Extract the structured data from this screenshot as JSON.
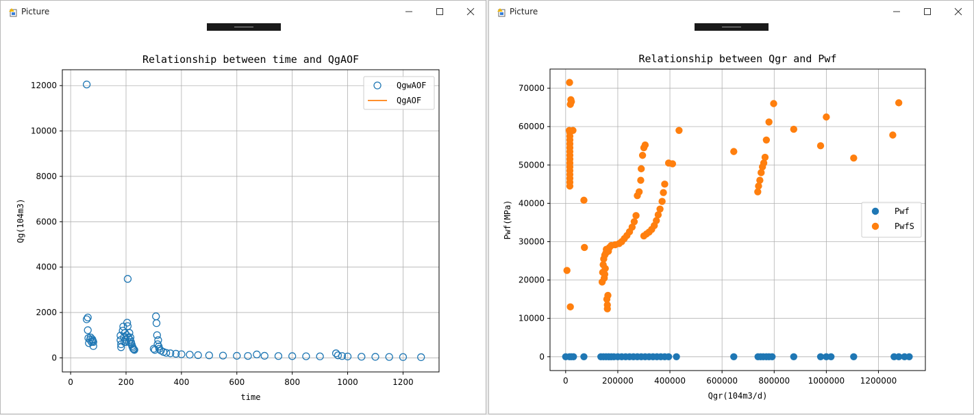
{
  "windows": [
    {
      "title": "Picture",
      "icons": [
        "app-icon",
        "minimize-icon",
        "maximize-icon",
        "close-icon"
      ]
    },
    {
      "title": "Picture",
      "icons": [
        "app-icon",
        "minimize-icon",
        "maximize-icon",
        "close-icon"
      ]
    }
  ],
  "colors": {
    "series1": "#1f77b4",
    "series2": "#ff7f0e",
    "grid": "#b0b0b0"
  },
  "chart_data": [
    {
      "type": "scatter",
      "title": "Relationship between time and QgAOF",
      "xlabel": "time",
      "ylabel": "Qg(104m3)",
      "xlim": [
        -30,
        1330
      ],
      "ylim": [
        -620,
        12700
      ],
      "xticks": [
        0,
        200,
        400,
        600,
        800,
        1000,
        1200
      ],
      "yticks": [
        0,
        2000,
        4000,
        6000,
        8000,
        10000,
        12000
      ],
      "xtick_labels": [
        "0",
        "200",
        "400",
        "600",
        "800",
        "1000",
        "1200"
      ],
      "ytick_labels": [
        "0",
        "2000",
        "4000",
        "6000",
        "8000",
        "10000",
        "12000"
      ],
      "grid": true,
      "legend": "upper right",
      "series": [
        {
          "name": "QgwAOF",
          "marker": "open-circle",
          "color": "#1f77b4",
          "points": [
            [
              58,
              12050
            ],
            [
              58,
              1700
            ],
            [
              62,
              1780
            ],
            [
              62,
              1220
            ],
            [
              64,
              870
            ],
            [
              66,
              650
            ],
            [
              70,
              800
            ],
            [
              72,
              900
            ],
            [
              76,
              700
            ],
            [
              78,
              820
            ],
            [
              80,
              760
            ],
            [
              82,
              520
            ],
            [
              82,
              700
            ],
            [
              180,
              980
            ],
            [
              180,
              780
            ],
            [
              182,
              600
            ],
            [
              182,
              470
            ],
            [
              188,
              1200
            ],
            [
              190,
              1380
            ],
            [
              192,
              900
            ],
            [
              194,
              700
            ],
            [
              196,
              1100
            ],
            [
              198,
              800
            ],
            [
              200,
              700
            ],
            [
              202,
              1000
            ],
            [
              204,
              1550
            ],
            [
              206,
              1400
            ],
            [
              206,
              3480
            ],
            [
              208,
              900
            ],
            [
              210,
              700
            ],
            [
              212,
              1100
            ],
            [
              214,
              800
            ],
            [
              216,
              900
            ],
            [
              218,
              700
            ],
            [
              220,
              600
            ],
            [
              222,
              520
            ],
            [
              224,
              460
            ],
            [
              226,
              400
            ],
            [
              228,
              380
            ],
            [
              230,
              350
            ],
            [
              300,
              400
            ],
            [
              304,
              350
            ],
            [
              308,
              1830
            ],
            [
              310,
              1530
            ],
            [
              312,
              1000
            ],
            [
              314,
              600
            ],
            [
              316,
              780
            ],
            [
              318,
              500
            ],
            [
              320,
              400
            ],
            [
              326,
              320
            ],
            [
              335,
              260
            ],
            [
              345,
              220
            ],
            [
              360,
              200
            ],
            [
              380,
              180
            ],
            [
              400,
              160
            ],
            [
              430,
              140
            ],
            [
              460,
              120
            ],
            [
              500,
              110
            ],
            [
              550,
              100
            ],
            [
              600,
              90
            ],
            [
              640,
              85
            ],
            [
              672,
              150
            ],
            [
              700,
              90
            ],
            [
              750,
              80
            ],
            [
              800,
              75
            ],
            [
              850,
              70
            ],
            [
              900,
              65
            ],
            [
              958,
              200
            ],
            [
              965,
              110
            ],
            [
              980,
              80
            ],
            [
              1000,
              60
            ],
            [
              1050,
              50
            ],
            [
              1100,
              45
            ],
            [
              1150,
              40
            ],
            [
              1200,
              35
            ],
            [
              1265,
              30
            ]
          ]
        },
        {
          "name": "QgAOF",
          "marker": "line",
          "color": "#ff7f0e",
          "points": []
        }
      ]
    },
    {
      "type": "scatter",
      "title": "Relationship between Qgr and Pwf",
      "xlabel": "Qgr(104m3/d)",
      "ylabel": "Pwf(MPa)",
      "xlim": [
        -60000,
        1380000
      ],
      "ylim": [
        -3600,
        75000
      ],
      "xticks": [
        0,
        200000,
        400000,
        600000,
        800000,
        1000000,
        1200000
      ],
      "yticks": [
        0,
        10000,
        20000,
        30000,
        40000,
        50000,
        60000,
        70000
      ],
      "xtick_labels": [
        "0",
        "200000",
        "400000",
        "600000",
        "800000",
        "1000000",
        "1200000"
      ],
      "ytick_labels": [
        "0",
        "10000",
        "20000",
        "30000",
        "40000",
        "50000",
        "60000",
        "70000"
      ],
      "grid": true,
      "legend": "center right",
      "series": [
        {
          "name": "Pwf",
          "marker": "filled-circle",
          "color": "#1f77b4",
          "points": [
            [
              0,
              0
            ],
            [
              15000,
              0
            ],
            [
              22000,
              0
            ],
            [
              30000,
              0
            ],
            [
              70000,
              0
            ],
            [
              135000,
              0
            ],
            [
              145000,
              0
            ],
            [
              155000,
              0
            ],
            [
              165000,
              0
            ],
            [
              175000,
              0
            ],
            [
              185000,
              0
            ],
            [
              200000,
              0
            ],
            [
              215000,
              0
            ],
            [
              230000,
              0
            ],
            [
              245000,
              0
            ],
            [
              260000,
              0
            ],
            [
              275000,
              0
            ],
            [
              290000,
              0
            ],
            [
              305000,
              0
            ],
            [
              320000,
              0
            ],
            [
              335000,
              0
            ],
            [
              350000,
              0
            ],
            [
              365000,
              0
            ],
            [
              380000,
              0
            ],
            [
              395000,
              0
            ],
            [
              425000,
              0
            ],
            [
              645000,
              0
            ],
            [
              738000,
              0
            ],
            [
              748000,
              0
            ],
            [
              758000,
              0
            ],
            [
              770000,
              0
            ],
            [
              780000,
              0
            ],
            [
              792000,
              0
            ],
            [
              875000,
              0
            ],
            [
              978000,
              0
            ],
            [
              1000000,
              0
            ],
            [
              1018000,
              0
            ],
            [
              1105000,
              0
            ],
            [
              1260000,
              0
            ],
            [
              1278000,
              0
            ],
            [
              1300000,
              0
            ],
            [
              1318000,
              0
            ]
          ]
        },
        {
          "name": "PwfS",
          "marker": "filled-circle",
          "color": "#ff7f0e",
          "points": [
            [
              5000,
              22500
            ],
            [
              15000,
              71500
            ],
            [
              22000,
              66500
            ],
            [
              18000,
              65800
            ],
            [
              20000,
              67000
            ],
            [
              14000,
              59000
            ],
            [
              28000,
              59000
            ],
            [
              16000,
              44500
            ],
            [
              16000,
              45500
            ],
            [
              16000,
              46500
            ],
            [
              16000,
              47500
            ],
            [
              16000,
              48500
            ],
            [
              16000,
              49500
            ],
            [
              16000,
              50500
            ],
            [
              16000,
              51500
            ],
            [
              16000,
              52500
            ],
            [
              16000,
              53500
            ],
            [
              16000,
              54500
            ],
            [
              16000,
              55500
            ],
            [
              16000,
              56500
            ],
            [
              16000,
              57500
            ],
            [
              16000,
              58500
            ],
            [
              18000,
              13000
            ],
            [
              70000,
              40800
            ],
            [
              72000,
              28500
            ],
            [
              140000,
              19500
            ],
            [
              142000,
              22000
            ],
            [
              144000,
              24000
            ],
            [
              146000,
              25500
            ],
            [
              148000,
              20500
            ],
            [
              150000,
              21500
            ],
            [
              150000,
              26500
            ],
            [
              152000,
              23000
            ],
            [
              154000,
              27000
            ],
            [
              156000,
              28000
            ],
            [
              158000,
              15000
            ],
            [
              160000,
              13500
            ],
            [
              160000,
              12500
            ],
            [
              162000,
              16000
            ],
            [
              164000,
              27500
            ],
            [
              168000,
              28500
            ],
            [
              175000,
              29000
            ],
            [
              190000,
              29200
            ],
            [
              205000,
              29500
            ],
            [
              215000,
              30000
            ],
            [
              225000,
              30800
            ],
            [
              235000,
              31600
            ],
            [
              245000,
              32600
            ],
            [
              255000,
              33800
            ],
            [
              263000,
              35200
            ],
            [
              270000,
              36800
            ],
            [
              275000,
              42000
            ],
            [
              282000,
              43000
            ],
            [
              288000,
              46000
            ],
            [
              290000,
              49000
            ],
            [
              295000,
              52500
            ],
            [
              300000,
              54500
            ],
            [
              305000,
              55200
            ],
            [
              300000,
              31500
            ],
            [
              310000,
              32000
            ],
            [
              320000,
              32500
            ],
            [
              330000,
              33200
            ],
            [
              340000,
              34200
            ],
            [
              348000,
              35500
            ],
            [
              355000,
              37000
            ],
            [
              362000,
              38500
            ],
            [
              370000,
              40500
            ],
            [
              375000,
              42800
            ],
            [
              380000,
              45000
            ],
            [
              395000,
              50500
            ],
            [
              410000,
              50300
            ],
            [
              435000,
              59000
            ],
            [
              645000,
              53500
            ],
            [
              737000,
              43000
            ],
            [
              740000,
              44500
            ],
            [
              745000,
              46000
            ],
            [
              750000,
              48000
            ],
            [
              755000,
              49500
            ],
            [
              760000,
              50500
            ],
            [
              765000,
              52000
            ],
            [
              770000,
              56500
            ],
            [
              780000,
              61200
            ],
            [
              798000,
              66000
            ],
            [
              875000,
              59300
            ],
            [
              978000,
              55000
            ],
            [
              1000000,
              62500
            ],
            [
              1105000,
              51800
            ],
            [
              1255000,
              57800
            ],
            [
              1278000,
              66200
            ]
          ]
        }
      ]
    }
  ]
}
